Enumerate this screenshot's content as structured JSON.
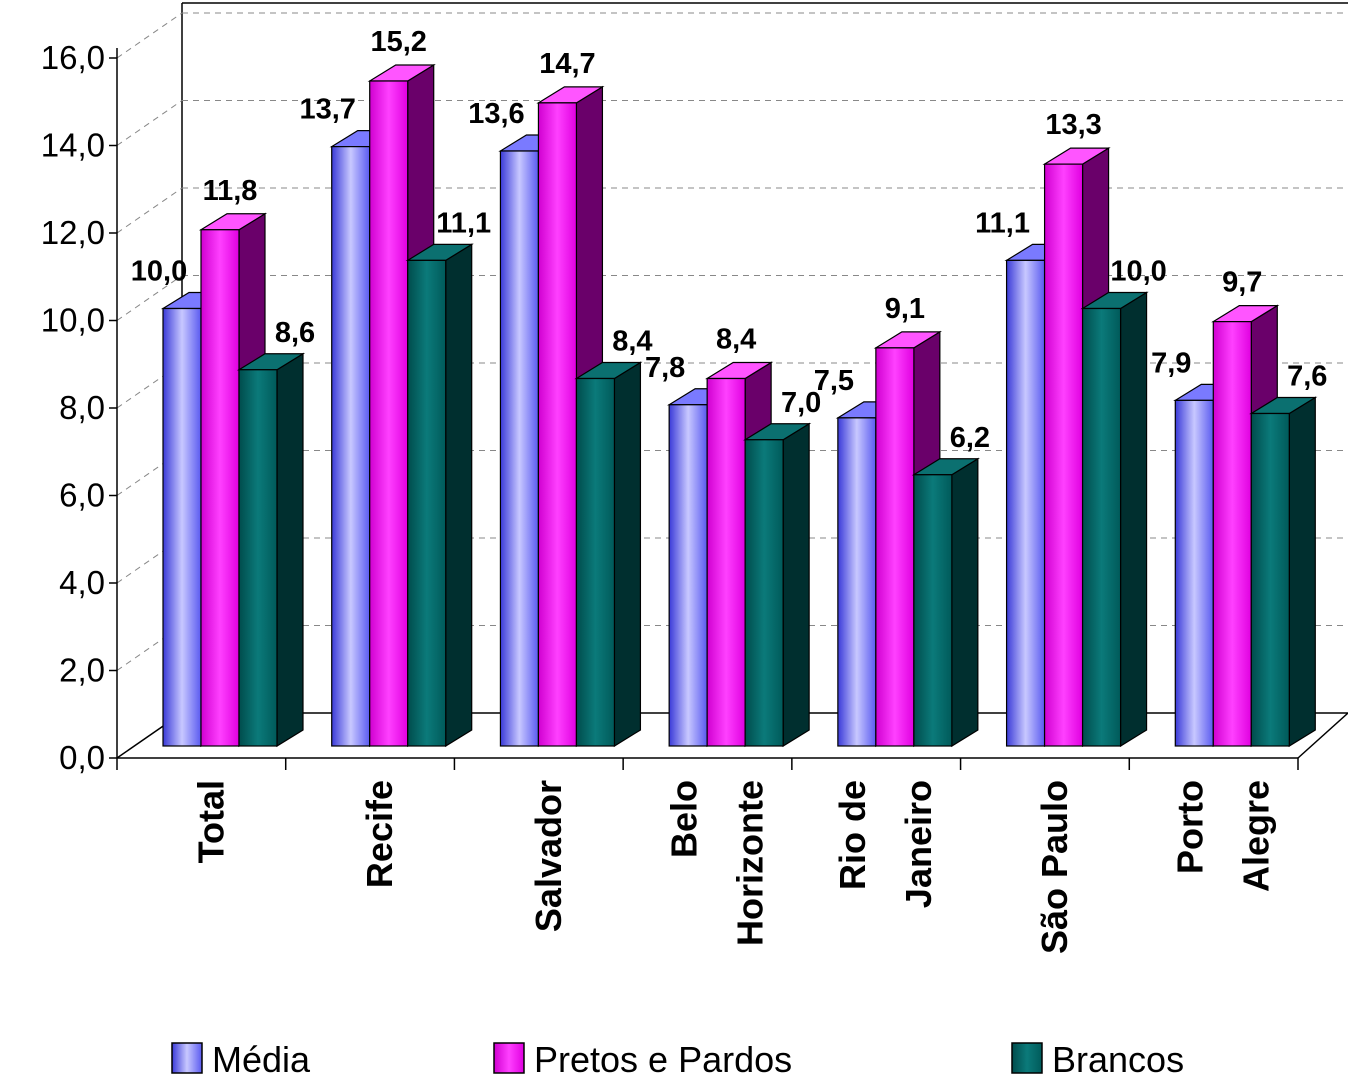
{
  "chart_data": {
    "type": "bar",
    "title": "",
    "xlabel": "",
    "ylabel": "",
    "ylim": [
      0,
      16
    ],
    "yticks": [
      "0,0",
      "2,0",
      "4,0",
      "6,0",
      "8,0",
      "10,0",
      "12,0",
      "14,0",
      "16,0"
    ],
    "grid": true,
    "legend_position": "bottom",
    "categories": [
      [
        "Total"
      ],
      [
        "Recife"
      ],
      [
        "Salvador"
      ],
      [
        "Belo",
        "Horizonte"
      ],
      [
        "Rio de",
        "Janeiro"
      ],
      [
        "São Paulo"
      ],
      [
        "Porto",
        "Alegre"
      ]
    ],
    "series": [
      {
        "name": "Média",
        "color": "#6666ff",
        "values": [
          10.0,
          13.7,
          13.6,
          7.8,
          7.5,
          11.1,
          7.9
        ],
        "labels": [
          "10,0",
          "13,7",
          "13,6",
          "7,8",
          "7,5",
          "11,1",
          "7,9"
        ]
      },
      {
        "name": "Pretos e Pardos",
        "color": "#ff00ff",
        "values": [
          11.8,
          15.2,
          14.7,
          8.4,
          9.1,
          13.3,
          9.7
        ],
        "labels": [
          "11,8",
          "15,2",
          "14,7",
          "8,4",
          "9,1",
          "13,3",
          "9,7"
        ]
      },
      {
        "name": "Brancos",
        "color": "#006666",
        "values": [
          8.6,
          11.1,
          8.4,
          7.0,
          6.2,
          10.0,
          7.6
        ],
        "labels": [
          "8,6",
          "11,1",
          "8,4",
          "7,0",
          "6,2",
          "10,0",
          "7,6"
        ]
      }
    ]
  }
}
